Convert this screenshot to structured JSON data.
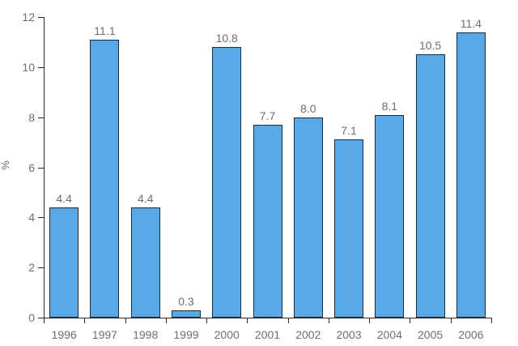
{
  "chart_data": {
    "type": "bar",
    "title": "",
    "xlabel": "",
    "ylabel": "%",
    "categories": [
      "1996",
      "1997",
      "1998",
      "1999",
      "2000",
      "2001",
      "2002",
      "2003",
      "2004",
      "2005",
      "2006"
    ],
    "values": [
      4.4,
      11.1,
      4.4,
      0.3,
      10.8,
      7.7,
      8.0,
      7.1,
      8.1,
      10.5,
      11.4
    ],
    "value_labels": [
      "4.4",
      "11.1",
      "4.4",
      "0.3",
      "10.8",
      "7.7",
      "8.0",
      "7.1",
      "8.1",
      "10.5",
      "11.4"
    ],
    "ylim": [
      0,
      12
    ],
    "yticks": [
      0,
      2,
      4,
      6,
      8,
      10,
      12
    ],
    "grid": false,
    "legend": null,
    "bar_fill_color": "#58A9E8",
    "bar_border_color": "#1d2b38",
    "axis_color": "#2b2b2b",
    "text_color": "#6e6e6e"
  }
}
